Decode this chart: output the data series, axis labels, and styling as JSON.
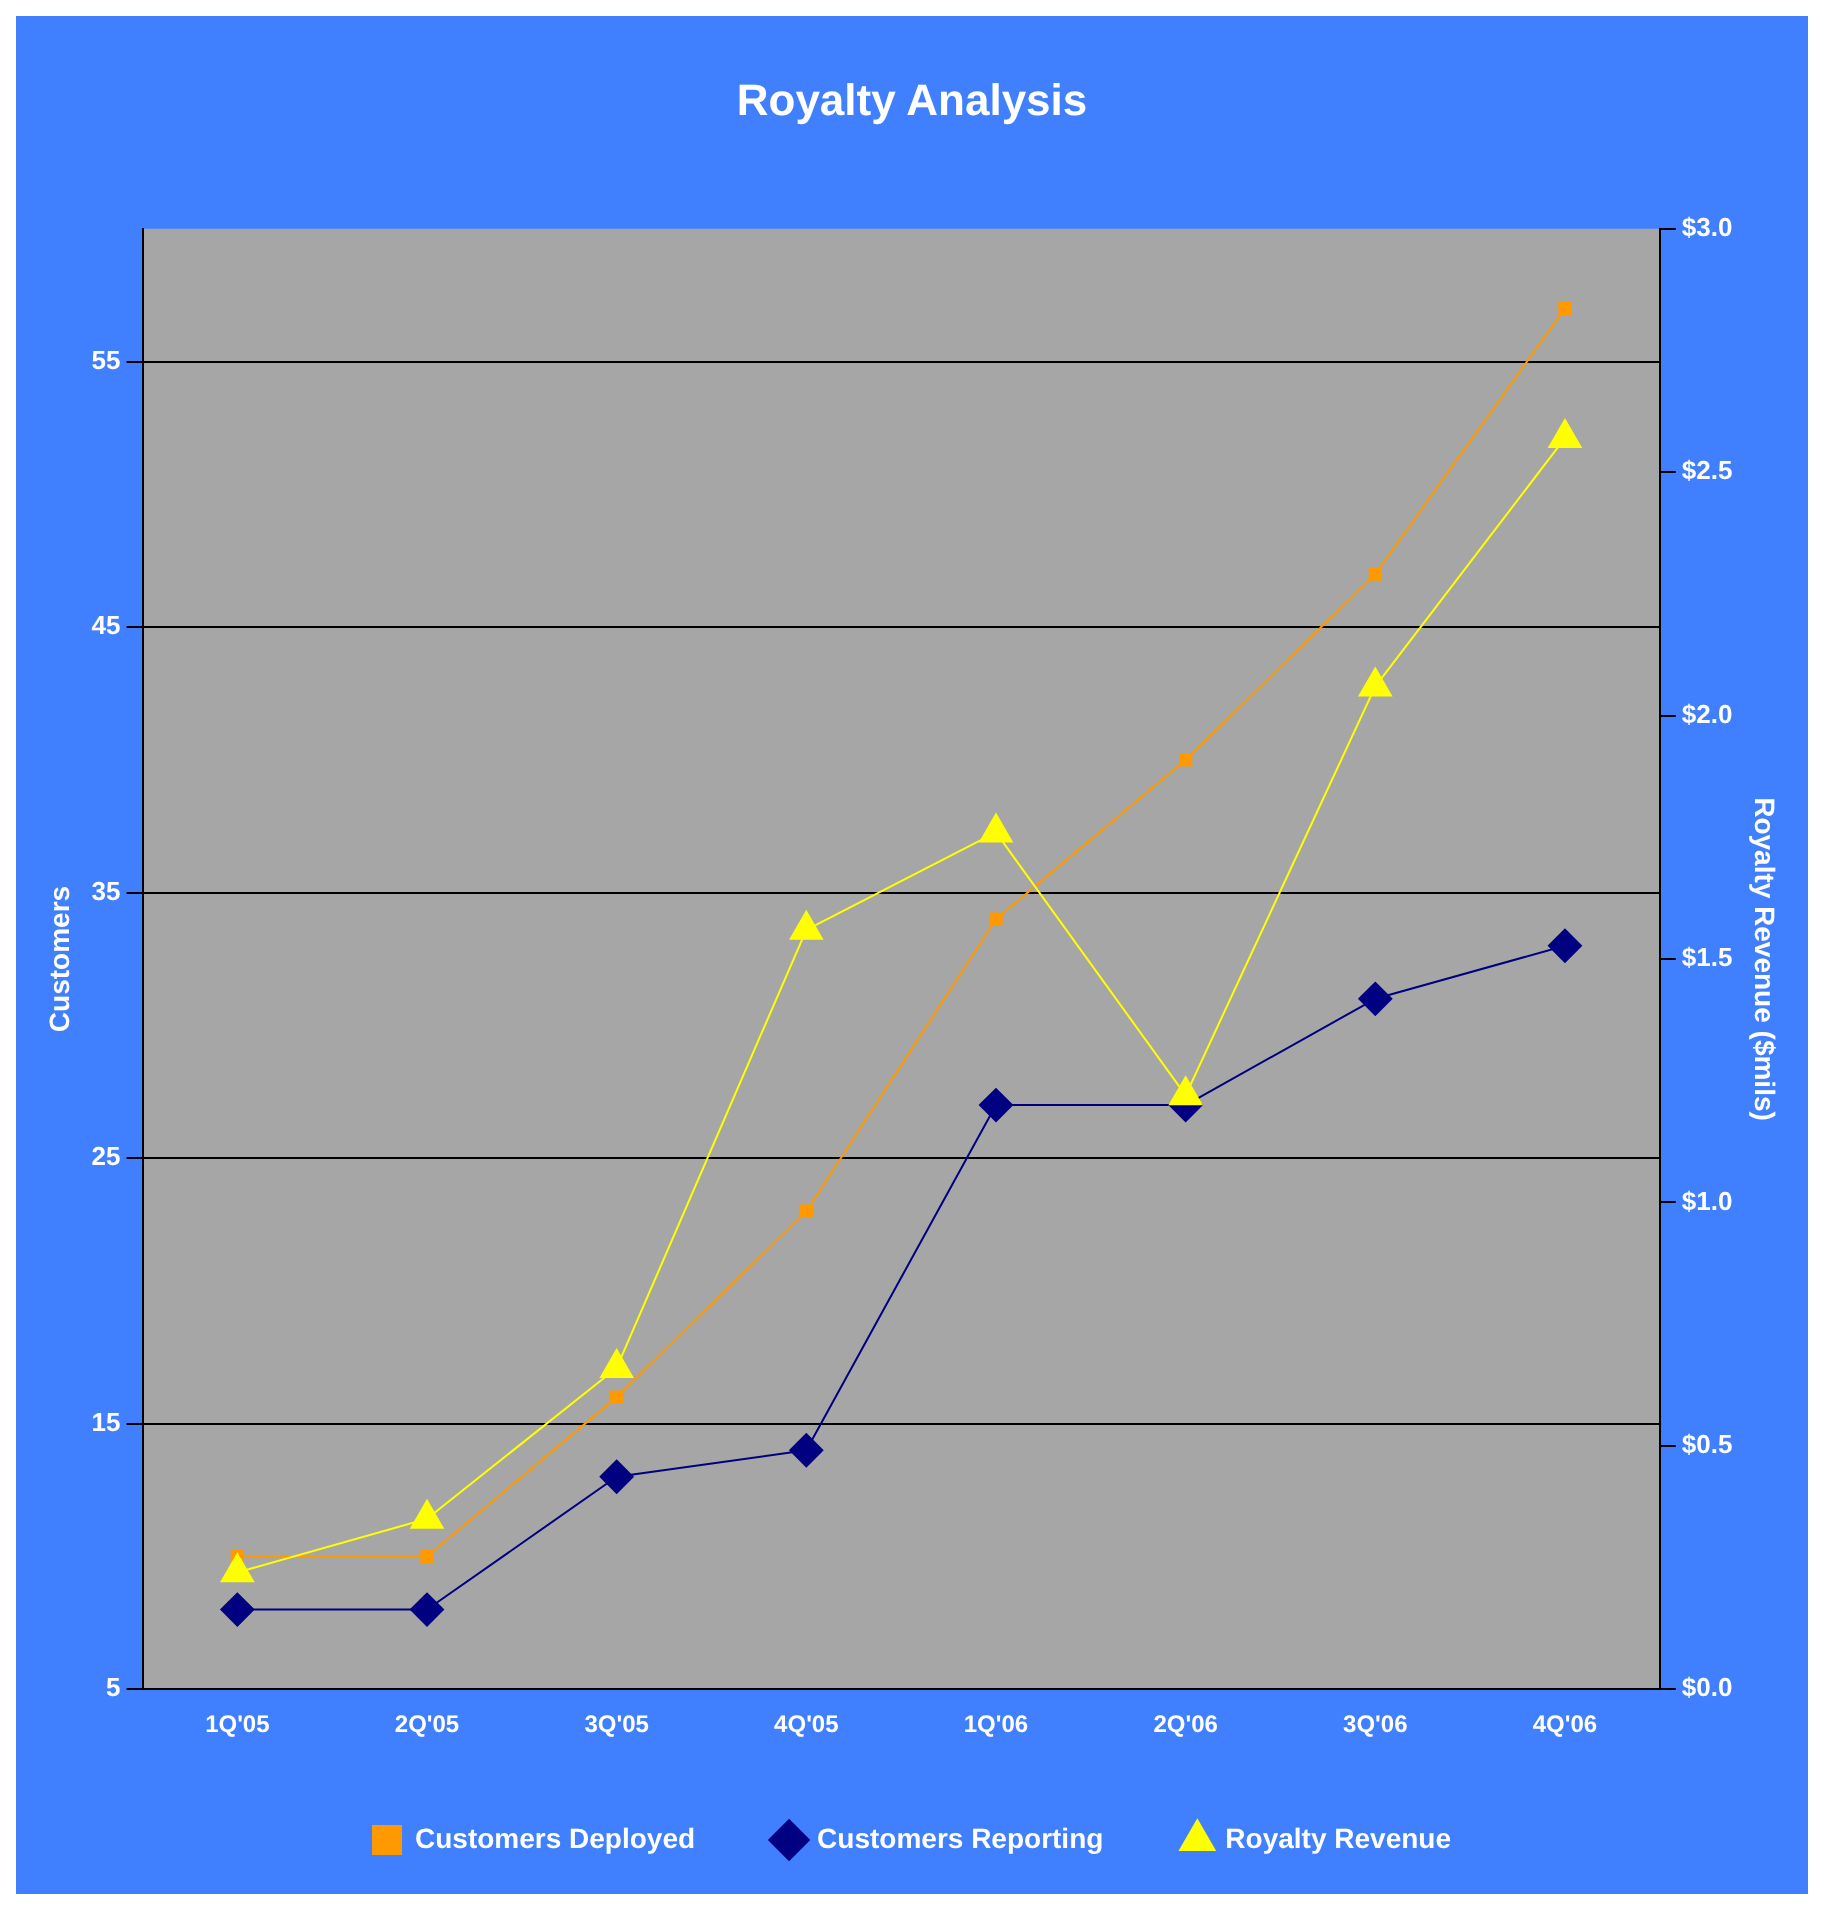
{
  "chart_data": {
    "type": "line",
    "title": "Royalty Analysis",
    "ylabel": "Customers",
    "y2label": "Royalty Revenue ($mils)",
    "categories": [
      "1Q'05",
      "2Q'05",
      "3Q'05",
      "4Q'05",
      "1Q'06",
      "2Q'06",
      "3Q'06",
      "4Q'06"
    ],
    "series": [
      {
        "name": "Customers Deployed",
        "color": "#ff9900",
        "marker": "square",
        "values": [
          10,
          10,
          16,
          23,
          34,
          40,
          47,
          57
        ]
      },
      {
        "name": "Customers Reporting",
        "color": "#000080",
        "marker": "diamond",
        "values": [
          8,
          8,
          13,
          14,
          27,
          27,
          31,
          33
        ]
      },
      {
        "name": "Royalty Revenue",
        "color": "#ffff00",
        "marker": "triangle",
        "axis": "y2",
        "values": [
          0.24,
          0.35,
          0.66,
          1.56,
          1.76,
          1.22,
          2.06,
          2.57
        ]
      }
    ],
    "ylim": [
      5,
      60
    ],
    "yticks": [
      5,
      15,
      25,
      35,
      45,
      55
    ],
    "y2lim": [
      0,
      3
    ],
    "y2ticks": [
      {
        "value": 0,
        "label": "$0.0"
      },
      {
        "value": 0.5,
        "label": "$0.5"
      },
      {
        "value": 1,
        "label": "$1.0"
      },
      {
        "value": 1.5,
        "label": "$1.5"
      },
      {
        "value": 2,
        "label": "$2.0"
      },
      {
        "value": 2.5,
        "label": "$2.5"
      },
      {
        "value": 3,
        "label": "$3.0"
      }
    ],
    "grid": "y",
    "legend": "bottom"
  }
}
